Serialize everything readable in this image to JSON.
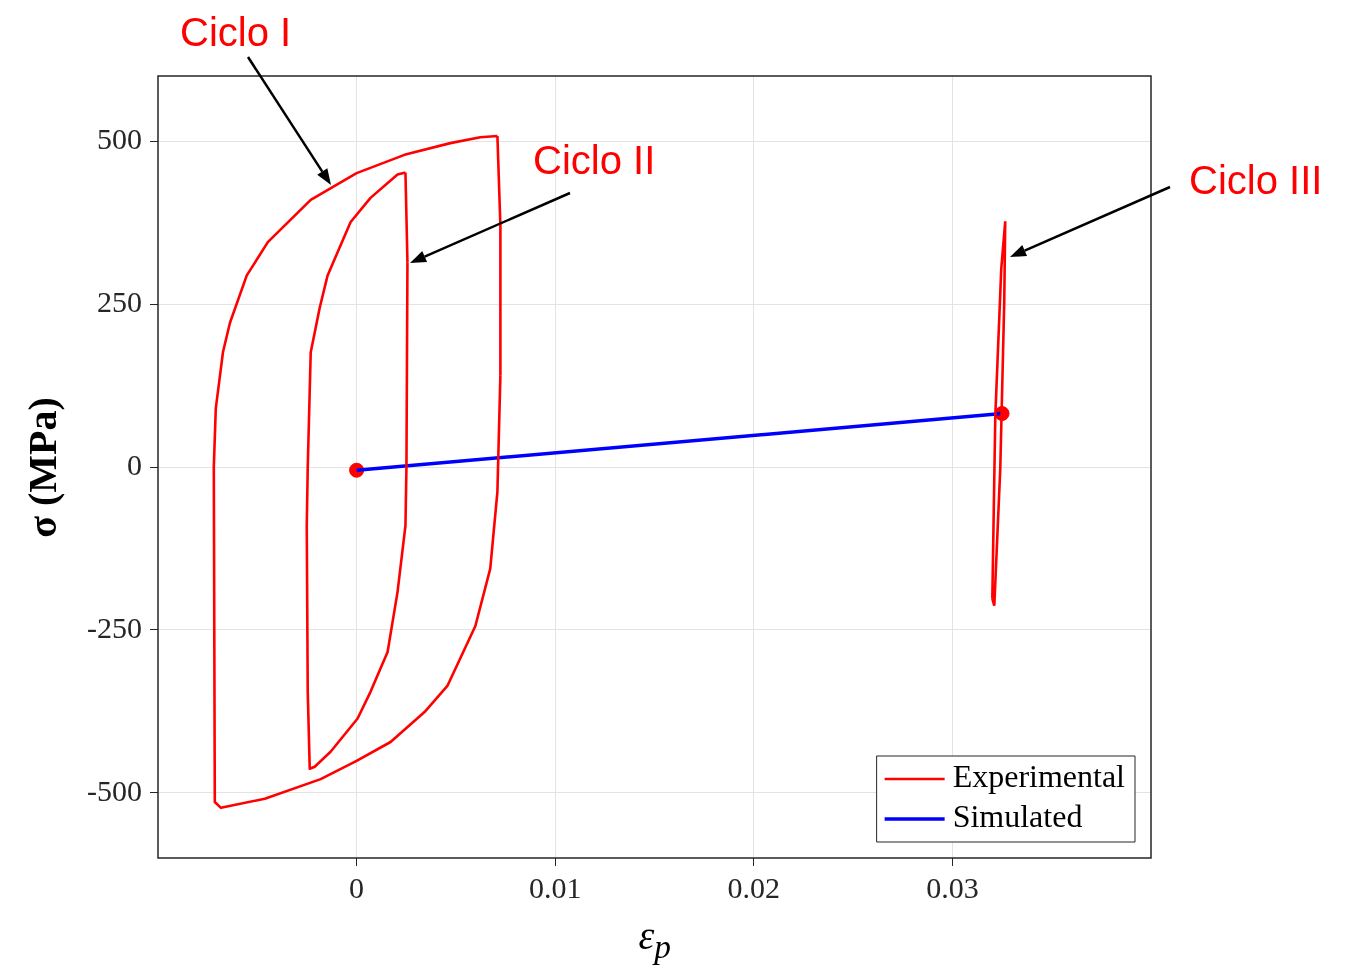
{
  "chart_data": {
    "type": "line",
    "xlabel": "ε$_{p}$",
    "ylabel": "σ (MPa)",
    "xlim": [
      -0.01,
      0.04
    ],
    "xticks": [
      0,
      0.01,
      0.02,
      0.03
    ],
    "ylim": [
      -600,
      600
    ],
    "yticks": [
      -500,
      -250,
      0,
      250,
      500
    ],
    "grid": true,
    "legend": "bottom right",
    "marker": "none",
    "line_style": "solid",
    "series": [
      {
        "name": "Experimental",
        "color": "#ff0000",
        "x": [
          0.00709,
          0.00623,
          0.00472,
          0.00241,
          0,
          -0.00231,
          -0.00447,
          -0.00553,
          -0.00638,
          -0.00673,
          -0.00709,
          -0.00719,
          null,
          -0.00719,
          -0.00714,
          -0.00683,
          -0.00462,
          -0.00181,
          0,
          0.00171,
          0.00342,
          0.00457,
          0.00598,
          0.00673,
          0.00709,
          0.00724,
          null,
          0.00724,
          0.00724,
          0.00709,
          null,
          0.00246,
          0.00256,
          null,
          0.00256,
          0.00251,
          0.00246,
          0.00206,
          0.00156,
          0.0007,
          5e-05,
          -0.00131,
          -0.00211,
          -0.00236,
          -0.00246,
          -0.00251,
          null,
          -0.00251,
          -0.00246,
          -0.00231,
          -0.00186,
          -0.00146,
          -0.0003,
          0.0007,
          0.00206,
          0.00246,
          null,
          0.03211,
          0.03241,
          0.03261,
          0.03266,
          null,
          0.03266,
          0.03246,
          0.03216,
          0.03201,
          null,
          0.03201,
          0.03211
        ],
        "values": [
          508,
          506,
          497,
          479,
          451,
          410,
          345,
          294,
          221,
          176,
          90,
          0,
          null,
          0,
          -514,
          -523,
          -509,
          -479,
          -451,
          -422,
          -376,
          -336,
          -244,
          -156,
          -38,
          141,
          null,
          141,
          371,
          508,
          null,
          452,
          314,
          null,
          314,
          0,
          -90,
          -192,
          -284,
          -345,
          -386,
          -437,
          -460,
          -463,
          -345,
          -90,
          null,
          -90,
          0,
          176,
          244,
          294,
          376,
          413,
          449,
          452,
          null,
          -213,
          -3,
          253,
          377,
          null,
          377,
          304,
          78,
          -202,
          null,
          -202,
          -213
        ]
      },
      {
        "name": "Simulated",
        "color": "#0000ff",
        "x": [
          0,
          0.0325
        ],
        "values": [
          -5,
          82
        ]
      },
      {
        "type": "scatter",
        "marker": "circle",
        "color": "#ff0000",
        "x": [
          0,
          0.0325
        ],
        "values": [
          -5,
          82
        ]
      }
    ],
    "annotations": [
      "Ciclo I",
      "Ciclo II",
      "Ciclo III"
    ]
  }
}
